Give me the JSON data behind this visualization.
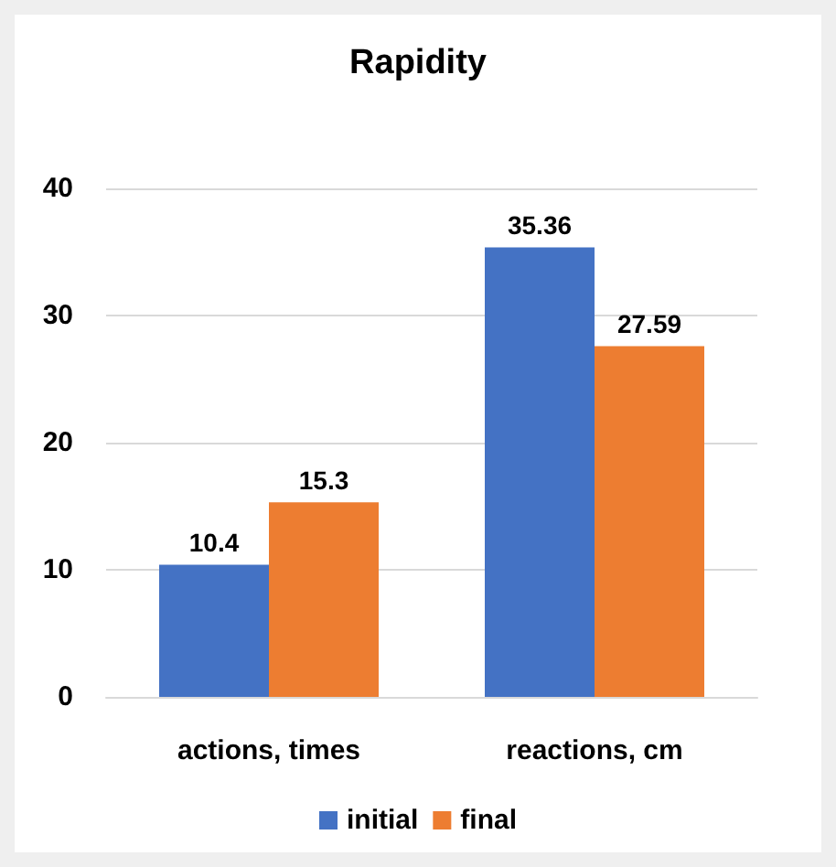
{
  "chart_data": {
    "type": "bar",
    "title": "Rapidity",
    "categories": [
      "actions, times",
      "reactions, cm"
    ],
    "series": [
      {
        "name": "initial",
        "color": "#4472c4",
        "values": [
          10.4,
          35.36
        ]
      },
      {
        "name": "final",
        "color": "#ed7d31",
        "values": [
          15.3,
          27.59
        ]
      }
    ],
    "ylim": [
      0,
      40
    ],
    "yticks": [
      0,
      10,
      20,
      30,
      40
    ],
    "grid": "y",
    "legend": "bottom",
    "data_labels": true
  }
}
